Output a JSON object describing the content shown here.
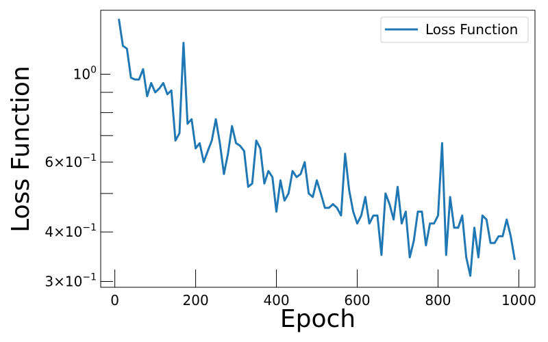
{
  "chart_data": {
    "type": "line",
    "xlabel": "Epoch",
    "ylabel": "Loss Function",
    "xlim": [
      -35,
      1040
    ],
    "ylim": [
      0.29,
      1.45
    ],
    "yscale": "log",
    "grid": false,
    "legend_position": "top-right",
    "colors": {
      "line": "#1f77b4",
      "axis": "#000000",
      "legend_border": "#cccccc"
    },
    "x_ticks": [
      0,
      200,
      400,
      600,
      800,
      1000
    ],
    "x_tick_labels": [
      "0",
      "200",
      "400",
      "600",
      "800",
      "1000"
    ],
    "y_ticks_major": [
      1.0
    ],
    "y_tick_labels_major": [
      "10^0"
    ],
    "y_ticks_minor": [
      0.3,
      0.4,
      0.5,
      0.6,
      0.7,
      0.8,
      0.9
    ],
    "y_tick_labels_minor": [
      {
        "value": 0.3,
        "mantissa": "3",
        "base": "10",
        "exponent": "−1"
      },
      {
        "value": 0.4,
        "mantissa": "4",
        "base": "10",
        "exponent": "−1"
      },
      {
        "value": 0.6,
        "mantissa": "6",
        "base": "10",
        "exponent": "−1"
      }
    ],
    "y_major_label": {
      "base": "10",
      "exponent": "0"
    },
    "series": [
      {
        "name": "Loss Function",
        "x": [
          10,
          20,
          30,
          40,
          50,
          60,
          70,
          80,
          90,
          100,
          110,
          120,
          130,
          140,
          150,
          160,
          170,
          180,
          190,
          200,
          210,
          220,
          230,
          240,
          250,
          260,
          270,
          280,
          290,
          300,
          310,
          320,
          330,
          340,
          350,
          360,
          370,
          380,
          390,
          400,
          410,
          420,
          430,
          440,
          450,
          460,
          470,
          480,
          490,
          500,
          510,
          520,
          530,
          540,
          550,
          560,
          570,
          580,
          590,
          600,
          610,
          620,
          630,
          640,
          650,
          660,
          670,
          680,
          690,
          700,
          710,
          720,
          730,
          740,
          750,
          760,
          770,
          780,
          790,
          800,
          810,
          820,
          830,
          840,
          850,
          860,
          870,
          880,
          890,
          900,
          910,
          920,
          930,
          940,
          950,
          960,
          970,
          980,
          990
        ],
        "y": [
          1.38,
          1.18,
          1.16,
          0.98,
          0.97,
          0.97,
          1.03,
          0.88,
          0.95,
          0.9,
          0.92,
          0.95,
          0.89,
          0.91,
          0.68,
          0.71,
          1.2,
          0.75,
          0.77,
          0.65,
          0.67,
          0.6,
          0.64,
          0.68,
          0.77,
          0.67,
          0.56,
          0.63,
          0.74,
          0.67,
          0.66,
          0.64,
          0.52,
          0.53,
          0.68,
          0.65,
          0.53,
          0.57,
          0.55,
          0.45,
          0.54,
          0.48,
          0.5,
          0.57,
          0.55,
          0.56,
          0.6,
          0.5,
          0.49,
          0.54,
          0.5,
          0.46,
          0.46,
          0.47,
          0.46,
          0.44,
          0.63,
          0.51,
          0.45,
          0.42,
          0.44,
          0.49,
          0.42,
          0.44,
          0.44,
          0.35,
          0.5,
          0.47,
          0.43,
          0.52,
          0.42,
          0.45,
          0.345,
          0.38,
          0.45,
          0.45,
          0.37,
          0.42,
          0.42,
          0.44,
          0.67,
          0.35,
          0.49,
          0.41,
          0.41,
          0.44,
          0.345,
          0.31,
          0.41,
          0.345,
          0.44,
          0.43,
          0.375,
          0.375,
          0.39,
          0.39,
          0.43,
          0.39,
          0.34
        ]
      }
    ]
  }
}
